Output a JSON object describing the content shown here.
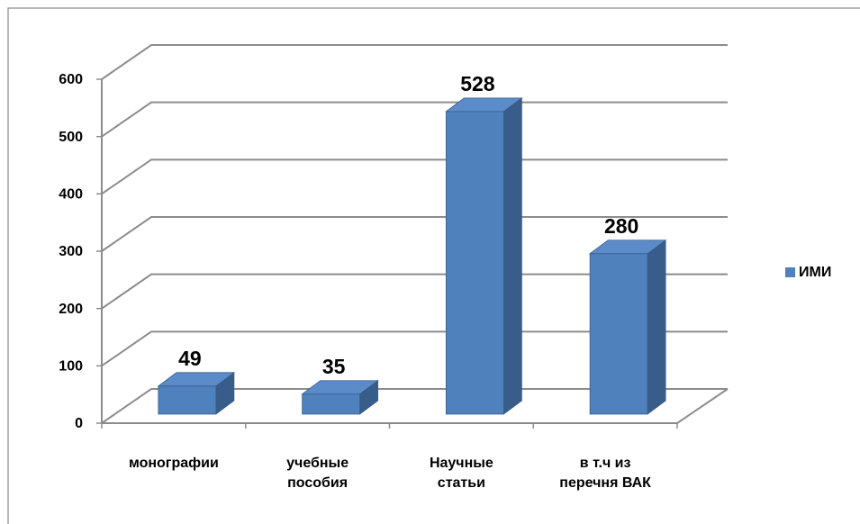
{
  "chart_data": {
    "type": "bar3d",
    "categories": [
      "монографии",
      "учебные пособия",
      "Научные статьи",
      "в т.ч из перечня ВАК"
    ],
    "series": [
      {
        "name": "ИМИ",
        "color": "#4f81bd",
        "values": [
          49,
          35,
          528,
          280
        ]
      }
    ],
    "ylim": [
      0,
      600
    ],
    "yticks": [
      0,
      100,
      200,
      300,
      400,
      500,
      600
    ],
    "grid": true,
    "legend": "right"
  }
}
